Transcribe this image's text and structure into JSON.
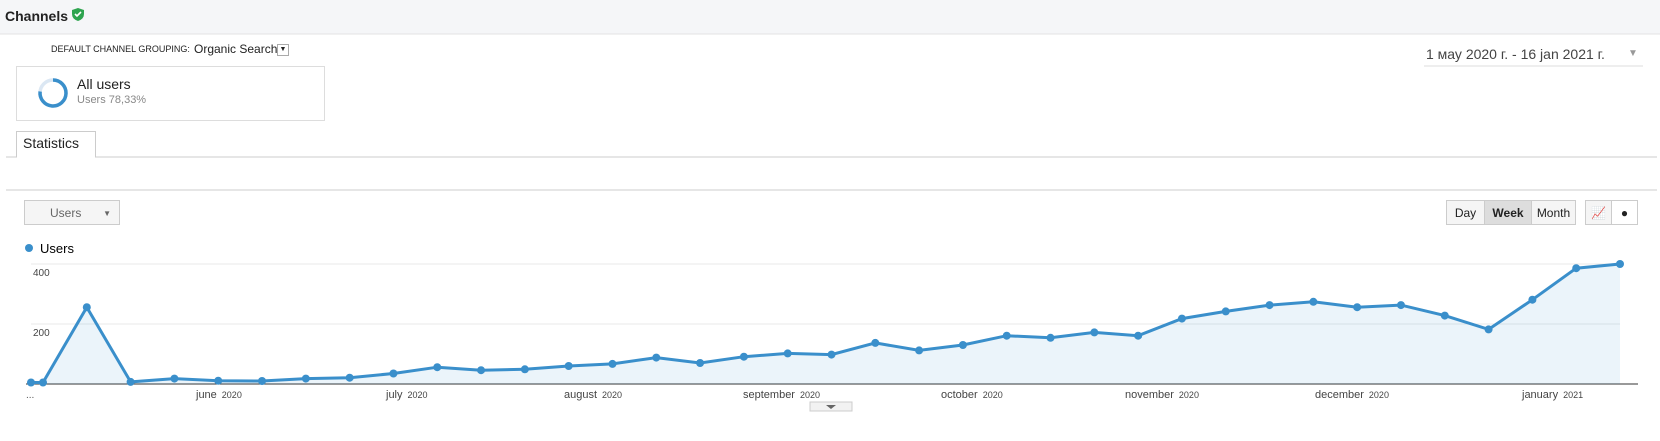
{
  "header": {
    "title": "Channels"
  },
  "segment": {
    "dimension_label": "DEFAULT CHANNEL GROUPING:",
    "dimension_value": "Organic Search",
    "name": "All users",
    "detail": "Users 78,33%"
  },
  "date_range": "1 мау 2020 г. - 16 jan 2021 г.",
  "tabs": [
    "Statistics"
  ],
  "metric_selector": "Users",
  "granularity": {
    "options": [
      "Day",
      "Week",
      "Month"
    ],
    "active": 1
  },
  "chart_data": {
    "type": "line",
    "fill_area": true,
    "axis_start_label": "...",
    "month_labels": [
      {
        "month": "june",
        "year": "2020"
      },
      {
        "month": "july",
        "year": "2020"
      },
      {
        "month": "august",
        "year": "2020"
      },
      {
        "month": "september",
        "year": "2020"
      },
      {
        "month": "october",
        "year": "2020"
      },
      {
        "month": "november",
        "year": "2020"
      },
      {
        "month": "december",
        "year": "2020"
      },
      {
        "month": "january",
        "year": "2021"
      }
    ],
    "series": [
      {
        "name": "Users",
        "color": "#3a8fcb",
        "values": [
          5,
          5,
          256,
          7,
          18,
          11,
          10,
          18,
          21,
          35,
          56,
          46,
          49,
          60,
          67,
          88,
          70,
          91,
          102,
          98,
          137,
          112,
          130,
          161,
          154,
          172,
          161,
          218,
          242,
          263,
          274,
          256,
          263,
          228,
          182,
          281,
          386,
          400
        ]
      }
    ],
    "ylim": [
      0,
      400
    ],
    "yticks": [
      200,
      400
    ],
    "grid": true
  }
}
